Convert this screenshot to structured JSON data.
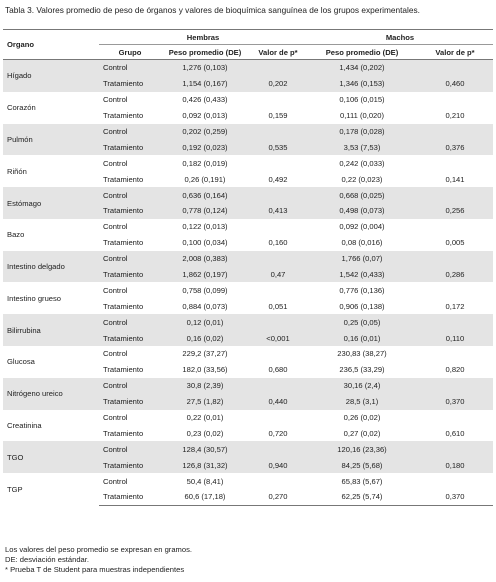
{
  "title": "Tabla 3. Valores promedio de peso de órganos y valores de bioquímica sanguínea de los grupos experimentales.",
  "header": {
    "organ": "Organo",
    "hembras": "Hembras",
    "machos": "Machos",
    "group": "Grupo",
    "weight_h": "Peso promedio (DE)",
    "p_h": "Valor de p*",
    "weight_m": "Peso promedio (DE)",
    "p_m": "Valor de p*"
  },
  "organs": [
    {
      "name": "Hígado",
      "rows": [
        [
          "Control",
          "1,276 (0,103)",
          "1,434 (0,202)"
        ],
        [
          "Tratamiento",
          "1,154 (0,167)",
          "1,346 (0,153)"
        ]
      ],
      "p_h": "0,202",
      "p_m": "0,460"
    },
    {
      "name": "Corazón",
      "rows": [
        [
          "Control",
          "0,426 (0,433)",
          "0,106 (0,015)"
        ],
        [
          "Tratamiento",
          "0,092 (0,013)",
          "0,111 (0,020)"
        ]
      ],
      "p_h": "0,159",
      "p_m": "0,210"
    },
    {
      "name": "Pulmón",
      "rows": [
        [
          "Control",
          "0,202 (0,259)",
          "0,178 (0,028)"
        ],
        [
          "Tratamiento",
          "0,192 (0,023)",
          "3,53 (7,53)"
        ]
      ],
      "p_h": "0,535",
      "p_m": "0,376"
    },
    {
      "name": "Riñón",
      "rows": [
        [
          "Control",
          "0,182 (0,019)",
          "0,242 (0,033)"
        ],
        [
          "Tratamiento",
          "0,26 (0,191)",
          "0,22 (0,023)"
        ]
      ],
      "p_h": "0,492",
      "p_m": "0,141"
    },
    {
      "name": "Estómago",
      "rows": [
        [
          "Control",
          "0,636 (0,164)",
          "0,668 (0,025)"
        ],
        [
          "Tratamiento",
          "0,778 (0,124)",
          "0,498 (0,073)"
        ]
      ],
      "p_h": "0,413",
      "p_m": "0,256"
    },
    {
      "name": "Bazo",
      "rows": [
        [
          "Control",
          "0,122 (0,013)",
          "0,092 (0,004)"
        ],
        [
          "Tratamiento",
          "0,100 (0,034)",
          "0,08 (0,016)"
        ]
      ],
      "p_h": "0,160",
      "p_m": "0,005"
    },
    {
      "name": "Intestino delgado",
      "rows": [
        [
          "Control",
          "2,008 (0,383)",
          "1,766 (0,07)"
        ],
        [
          "Tratamiento",
          "1,862 (0,197)",
          "1,542 (0,433)"
        ]
      ],
      "p_h": "0,47",
      "p_m": "0,286"
    },
    {
      "name": "Intestino grueso",
      "rows": [
        [
          "Control",
          "0,758 (0,099)",
          "0,776 (0,136)"
        ],
        [
          "Tratamiento",
          "0,884 (0,073)",
          "0,906 (0,138)"
        ]
      ],
      "p_h": "0,051",
      "p_m": "0,172"
    },
    {
      "name": "Bilirrubina",
      "rows": [
        [
          "Control",
          "0,12 (0,01)",
          "0,25 (0,05)"
        ],
        [
          "Tratamiento",
          "0,16 (0,02)",
          "0,16 (0,01)"
        ]
      ],
      "p_h": "<0,001",
      "p_m": "0,110"
    },
    {
      "name": "Glucosa",
      "rows": [
        [
          "Control",
          "229,2 (37,27)",
          "230,83 (38,27)"
        ],
        [
          "Tratamiento",
          "182,0 (33,56)",
          "236,5 (33,29)"
        ]
      ],
      "p_h": "0,680",
      "p_m": "0,820"
    },
    {
      "name": "Nitrógeno ureico",
      "rows": [
        [
          "Control",
          "30,8 (2,39)",
          "30,16 (2,4)"
        ],
        [
          "Tratamiento",
          "27,5 (1,82)",
          "28,5 (3,1)"
        ]
      ],
      "p_h": "0,440",
      "p_m": "0,370"
    },
    {
      "name": "Creatinina",
      "rows": [
        [
          "Control",
          "0,22 (0,01)",
          "0,26 (0,02)"
        ],
        [
          "Tratamiento",
          "0,23 (0,02)",
          "0,27 (0,02)"
        ]
      ],
      "p_h": "0,720",
      "p_m": "0,610"
    },
    {
      "name": "TGO",
      "rows": [
        [
          "Control",
          "128,4 (30,57)",
          "120,16 (23,36)"
        ],
        [
          "Tratamiento",
          "126,8 (31,32)",
          "84,25 (5,68)"
        ]
      ],
      "p_h": "0,940",
      "p_m": "0,180"
    },
    {
      "name": "TGP",
      "rows": [
        [
          "Control",
          "50,4 (8,41)",
          "65,83 (5,67)"
        ],
        [
          "Tratamiento",
          "60,6 (17,18)",
          "62,25 (5,74)"
        ]
      ],
      "p_h": "0,270",
      "p_m": "0,370"
    }
  ],
  "notes": [
    "Los valores del peso promedio se expresan en gramos.",
    "DE: desviación estándar.",
    "* Prueba T de Student para muestras independientes"
  ]
}
